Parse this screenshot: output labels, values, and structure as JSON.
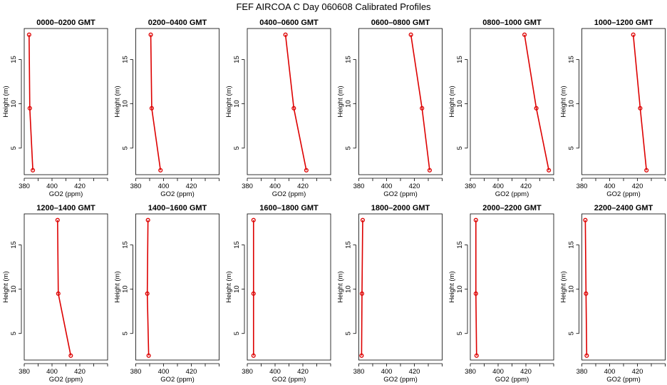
{
  "figure": {
    "title": "FEF AIRCOA C  Day 060608  Calibrated Profiles"
  },
  "colors": {
    "series": "#dd0000",
    "axis": "#000000",
    "background": "#ffffff"
  },
  "chart_data": [
    {
      "type": "line",
      "title": "0000–0200 GMT",
      "xlabel": "GO2 (ppm)",
      "ylabel": "Height (m)",
      "xlim": [
        380,
        440
      ],
      "ylim": [
        2,
        18.5
      ],
      "xticks": [
        380,
        400,
        420
      ],
      "yticks": [
        5,
        10,
        15
      ],
      "grid": false,
      "series": [
        {
          "x": [
            383.5,
            384.0,
            386.2
          ],
          "y": [
            17.8,
            9.5,
            2.5
          ]
        }
      ]
    },
    {
      "type": "line",
      "title": "0200–0400 GMT",
      "xlabel": "GO2 (ppm)",
      "ylabel": "Height (m)",
      "xlim": [
        380,
        440
      ],
      "ylim": [
        2,
        18.5
      ],
      "xticks": [
        380,
        400,
        420
      ],
      "yticks": [
        5,
        10,
        15
      ],
      "grid": false,
      "series": [
        {
          "x": [
            390.8,
            391.5,
            397.8
          ],
          "y": [
            17.8,
            9.5,
            2.5
          ]
        }
      ]
    },
    {
      "type": "line",
      "title": "0400–0600 GMT",
      "xlabel": "GO2 (ppm)",
      "ylabel": "Height (m)",
      "xlim": [
        380,
        440
      ],
      "ylim": [
        2,
        18.5
      ],
      "xticks": [
        380,
        400,
        420
      ],
      "yticks": [
        5,
        10,
        15
      ],
      "grid": false,
      "series": [
        {
          "x": [
            407.5,
            413.5,
            422.5
          ],
          "y": [
            17.8,
            9.5,
            2.5
          ]
        }
      ]
    },
    {
      "type": "line",
      "title": "0600–0800 GMT",
      "xlabel": "GO2 (ppm)",
      "ylabel": "Height (m)",
      "xlim": [
        380,
        440
      ],
      "ylim": [
        2,
        18.5
      ],
      "xticks": [
        380,
        400,
        420
      ],
      "yticks": [
        5,
        10,
        15
      ],
      "grid": false,
      "series": [
        {
          "x": [
            417.5,
            425.5,
            431.0
          ],
          "y": [
            17.8,
            9.5,
            2.5
          ]
        }
      ]
    },
    {
      "type": "line",
      "title": "0800–1000 GMT",
      "xlabel": "GO2 (ppm)",
      "ylabel": "Height (m)",
      "xlim": [
        380,
        440
      ],
      "ylim": [
        2,
        18.5
      ],
      "xticks": [
        380,
        400,
        420
      ],
      "yticks": [
        5,
        10,
        15
      ],
      "grid": false,
      "series": [
        {
          "x": [
            419.0,
            427.5,
            436.5
          ],
          "y": [
            17.8,
            9.5,
            2.5
          ]
        }
      ]
    },
    {
      "type": "line",
      "title": "1000–1200 GMT",
      "xlabel": "GO2 (ppm)",
      "ylabel": "Height (m)",
      "xlim": [
        380,
        440
      ],
      "ylim": [
        2,
        18.5
      ],
      "xticks": [
        380,
        400,
        420
      ],
      "yticks": [
        5,
        10,
        15
      ],
      "grid": false,
      "series": [
        {
          "x": [
            417.0,
            422.0,
            426.5
          ],
          "y": [
            17.8,
            9.5,
            2.5
          ]
        }
      ]
    },
    {
      "type": "line",
      "title": "1200–1400 GMT",
      "xlabel": "GO2 (ppm)",
      "ylabel": "Height (m)",
      "xlim": [
        380,
        440
      ],
      "ylim": [
        2,
        18.5
      ],
      "xticks": [
        380,
        400,
        420
      ],
      "yticks": [
        5,
        10,
        15
      ],
      "grid": false,
      "series": [
        {
          "x": [
            404.0,
            404.5,
            413.5
          ],
          "y": [
            17.8,
            9.5,
            2.5
          ]
        }
      ]
    },
    {
      "type": "line",
      "title": "1400–1600 GMT",
      "xlabel": "GO2 (ppm)",
      "ylabel": "Height (m)",
      "xlim": [
        380,
        440
      ],
      "ylim": [
        2,
        18.5
      ],
      "xticks": [
        380,
        400,
        420
      ],
      "yticks": [
        5,
        10,
        15
      ],
      "grid": false,
      "series": [
        {
          "x": [
            388.8,
            388.3,
            389.3
          ],
          "y": [
            17.8,
            9.5,
            2.5
          ]
        }
      ]
    },
    {
      "type": "line",
      "title": "1600–1800 GMT",
      "xlabel": "GO2 (ppm)",
      "ylabel": "Height (m)",
      "xlim": [
        380,
        440
      ],
      "ylim": [
        2,
        18.5
      ],
      "xticks": [
        380,
        400,
        420
      ],
      "yticks": [
        5,
        10,
        15
      ],
      "grid": false,
      "series": [
        {
          "x": [
            384.5,
            384.5,
            384.5
          ],
          "y": [
            17.8,
            9.5,
            2.5
          ]
        }
      ]
    },
    {
      "type": "line",
      "title": "1800–2000 GMT",
      "xlabel": "GO2 (ppm)",
      "ylabel": "Height (m)",
      "xlim": [
        380,
        440
      ],
      "ylim": [
        2,
        18.5
      ],
      "xticks": [
        380,
        400,
        420
      ],
      "yticks": [
        5,
        10,
        15
      ],
      "grid": false,
      "series": [
        {
          "x": [
            382.8,
            382.3,
            382.0
          ],
          "y": [
            17.8,
            9.5,
            2.5
          ]
        }
      ]
    },
    {
      "type": "line",
      "title": "2000–2200 GMT",
      "xlabel": "GO2 (ppm)",
      "ylabel": "Height (m)",
      "xlim": [
        380,
        440
      ],
      "ylim": [
        2,
        18.5
      ],
      "xticks": [
        380,
        400,
        420
      ],
      "yticks": [
        5,
        10,
        15
      ],
      "grid": false,
      "series": [
        {
          "x": [
            384.0,
            384.0,
            384.5
          ],
          "y": [
            17.8,
            9.5,
            2.5
          ]
        }
      ]
    },
    {
      "type": "line",
      "title": "2200–2400 GMT",
      "xlabel": "GO2 (ppm)",
      "ylabel": "Height (m)",
      "xlim": [
        380,
        440
      ],
      "ylim": [
        2,
        18.5
      ],
      "xticks": [
        380,
        400,
        420
      ],
      "yticks": [
        5,
        10,
        15
      ],
      "grid": false,
      "series": [
        {
          "x": [
            382.5,
            383.0,
            383.5
          ],
          "y": [
            17.8,
            9.5,
            2.5
          ]
        }
      ]
    }
  ]
}
